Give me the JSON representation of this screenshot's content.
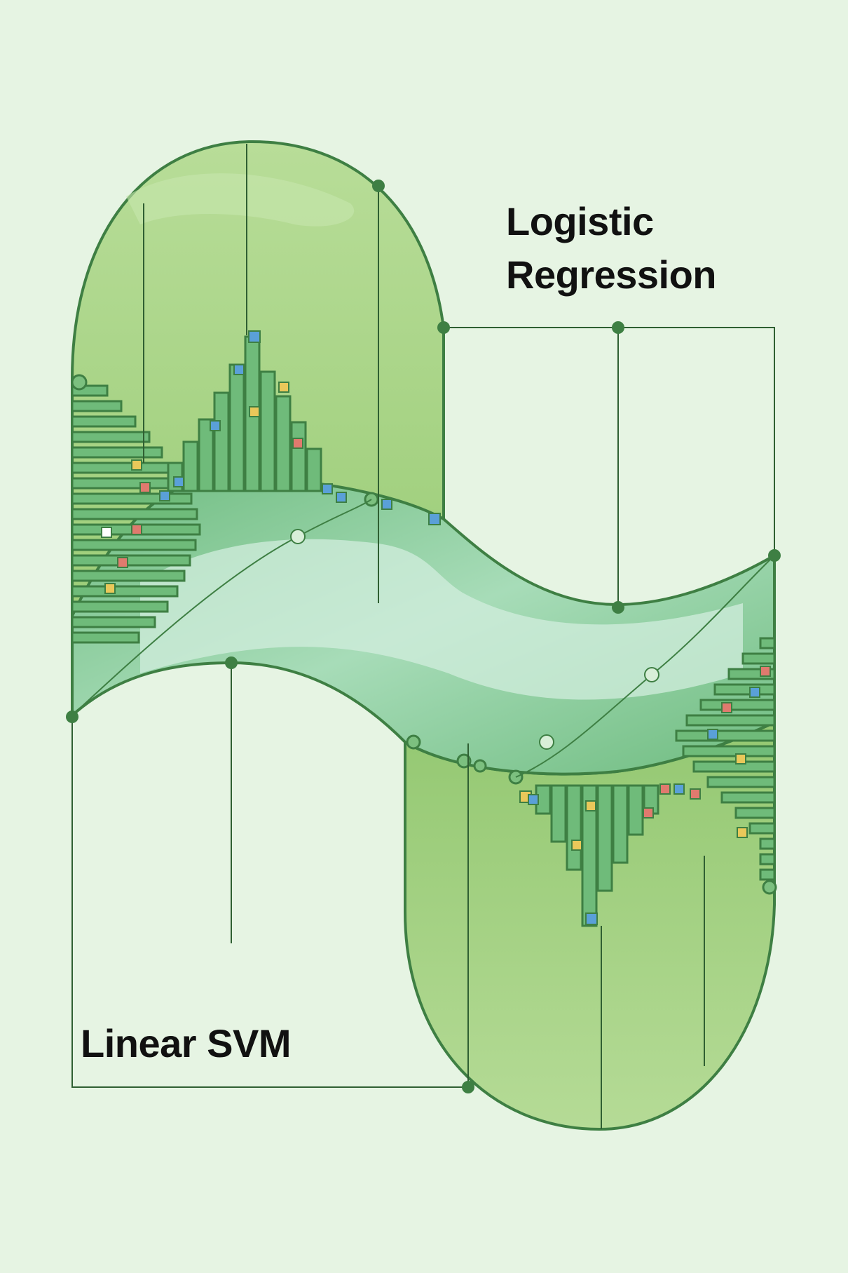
{
  "labels": {
    "logistic_regression": [
      "Logistic",
      "Regression"
    ],
    "linear_svm": "Linear SVM"
  },
  "colors": {
    "background": "#e6f4e3",
    "outline": "#3e7f43",
    "upper_lobe_fill": "#a9d48c",
    "lower_lobe_fill": "#a9d48c",
    "band_fill": "#7fc48b",
    "band_highlight": "#c9ead3",
    "bar_fill": "#6fbb7a",
    "accent_blue": "#5aa0d8",
    "accent_yellow": "#e9c85a",
    "accent_red": "#e07a6e"
  }
}
